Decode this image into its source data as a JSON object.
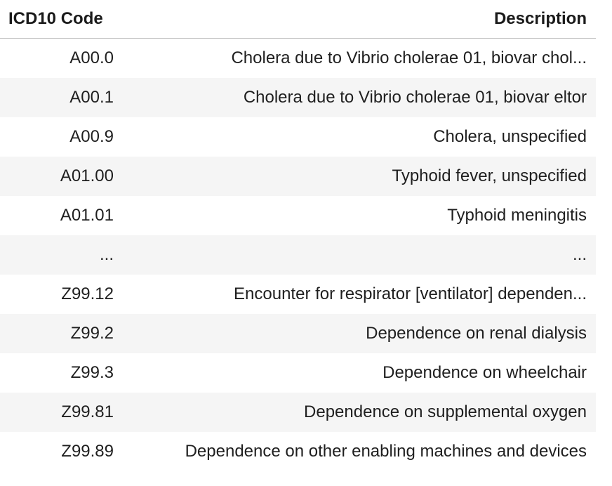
{
  "table": {
    "headers": {
      "code": "ICD10 Code",
      "description": "Description"
    },
    "rows": [
      {
        "code": "A00.0",
        "description": "Cholera due to Vibrio cholerae 01, biovar chol..."
      },
      {
        "code": "A00.1",
        "description": "Cholera due to Vibrio cholerae 01, biovar eltor"
      },
      {
        "code": "A00.9",
        "description": "Cholera, unspecified"
      },
      {
        "code": "A01.00",
        "description": "Typhoid fever, unspecified"
      },
      {
        "code": "A01.01",
        "description": "Typhoid meningitis"
      },
      {
        "code": "...",
        "description": "..."
      },
      {
        "code": "Z99.12",
        "description": "Encounter for respirator [ventilator] dependen..."
      },
      {
        "code": "Z99.2",
        "description": "Dependence on renal dialysis"
      },
      {
        "code": "Z99.3",
        "description": "Dependence on wheelchair"
      },
      {
        "code": "Z99.81",
        "description": "Dependence on supplemental oxygen"
      },
      {
        "code": "Z99.89",
        "description": "Dependence on other enabling machines and devices"
      }
    ]
  }
}
